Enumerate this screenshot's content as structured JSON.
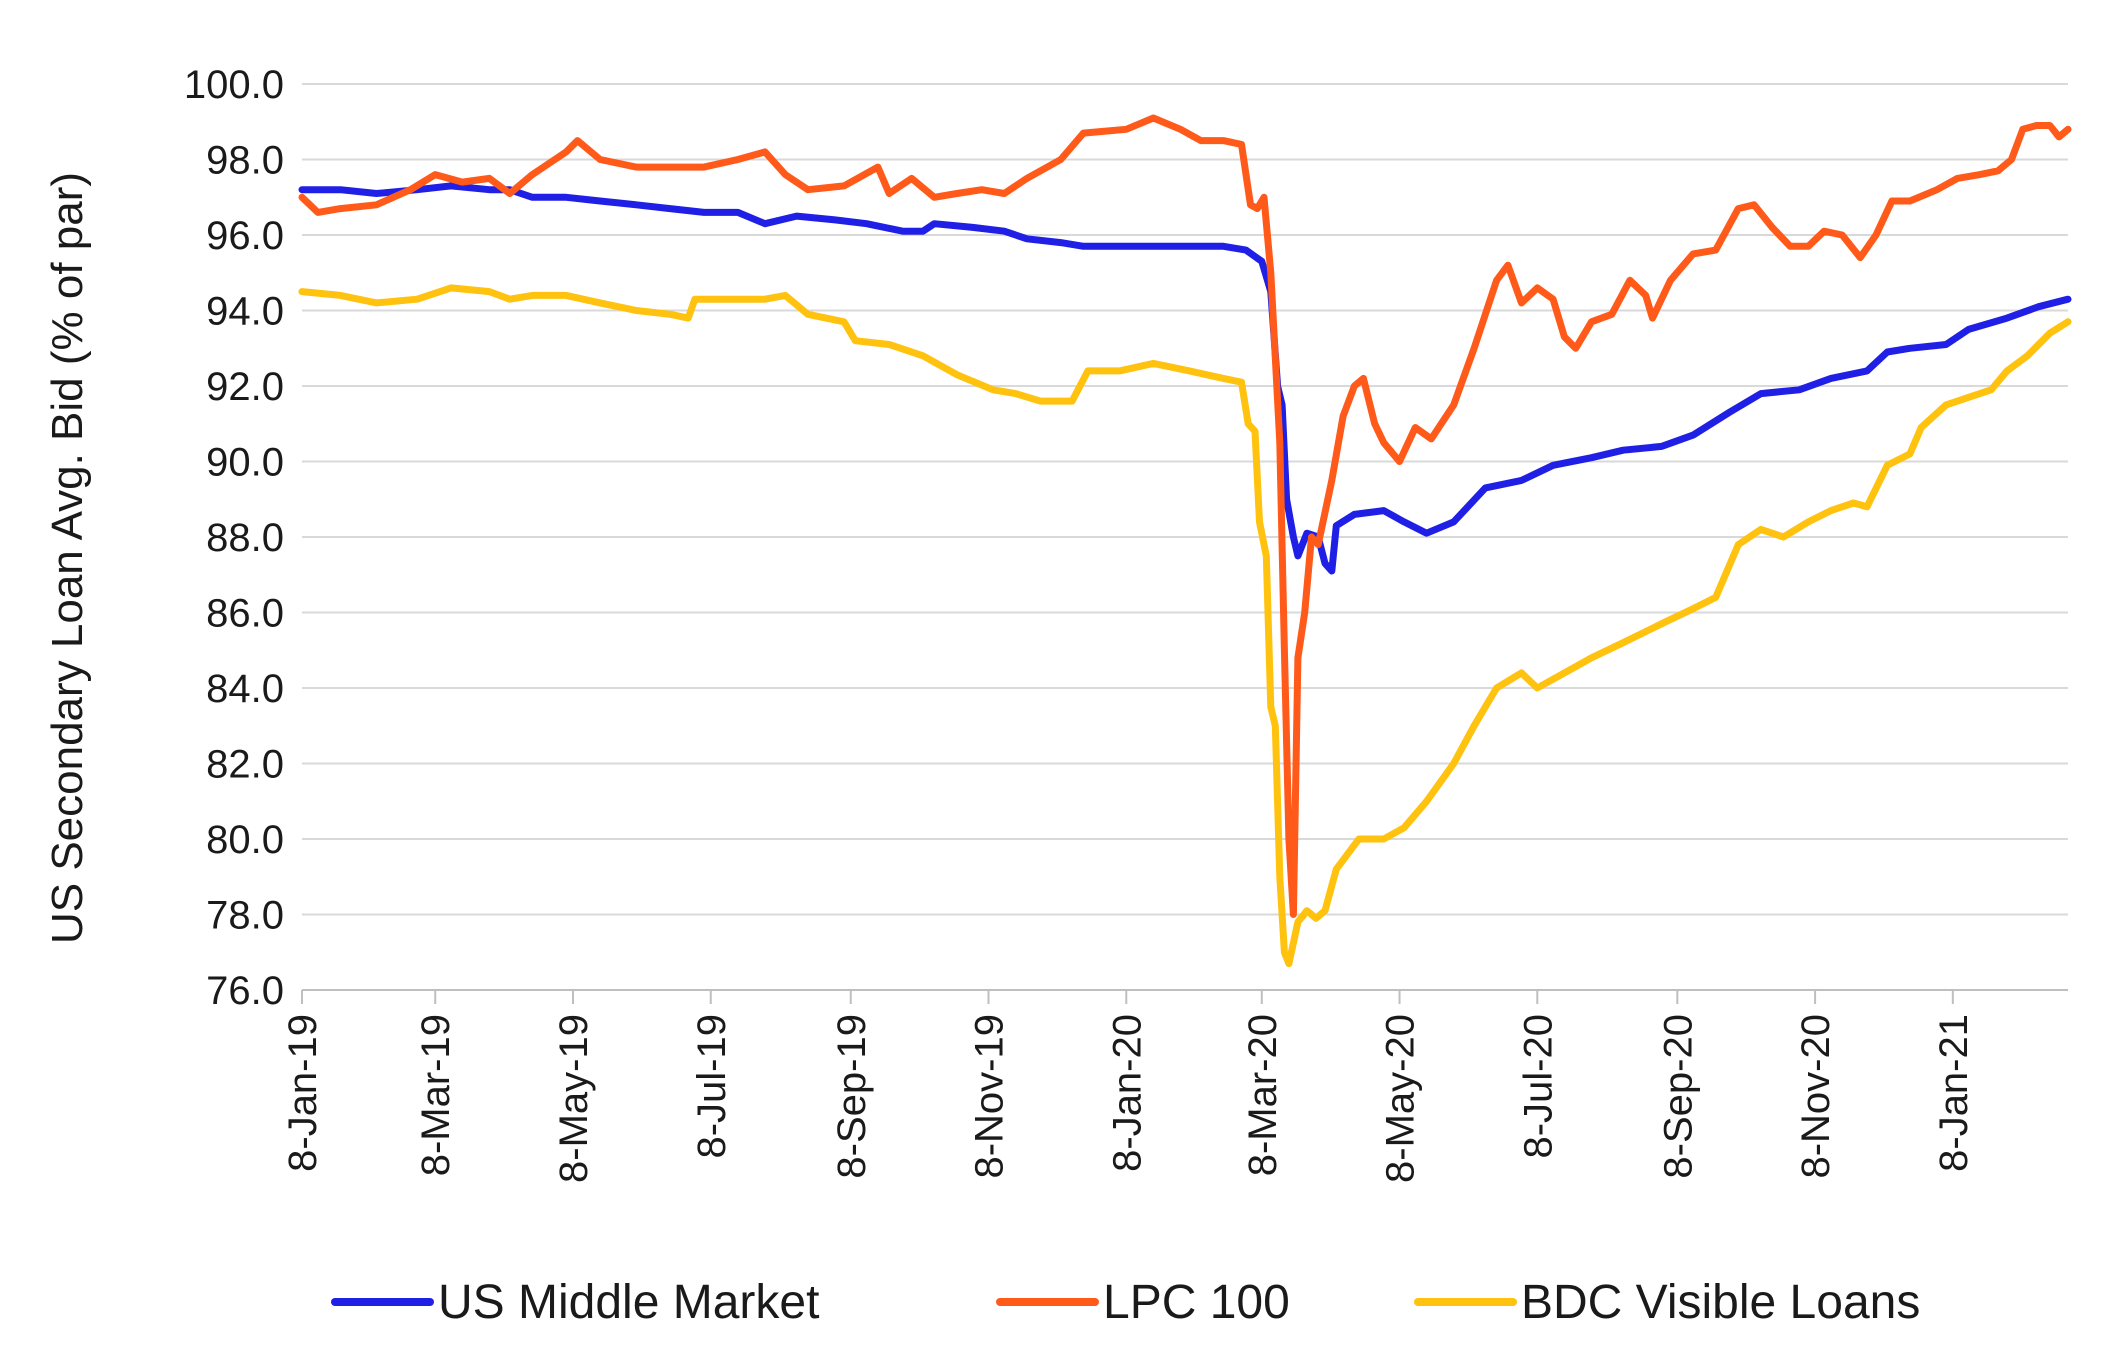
{
  "chart_data": {
    "type": "line",
    "title": "",
    "xlabel": "",
    "ylabel": "US Secondary Loan Avg. Bid (% of par)",
    "ylim": [
      76.0,
      100.0
    ],
    "y_ticks": [
      "76.0",
      "78.0",
      "80.0",
      "82.0",
      "84.0",
      "86.0",
      "88.0",
      "90.0",
      "92.0",
      "94.0",
      "96.0",
      "98.0",
      "100.0"
    ],
    "x_start": "2019-01-08",
    "x_end": "2021-02-28",
    "x_ticks": [
      {
        "date": "2019-01-08",
        "label": "8-Jan-19"
      },
      {
        "date": "2019-03-08",
        "label": "8-Mar-19"
      },
      {
        "date": "2019-05-08",
        "label": "8-May-19"
      },
      {
        "date": "2019-07-08",
        "label": "8-Jul-19"
      },
      {
        "date": "2019-09-08",
        "label": "8-Sep-19"
      },
      {
        "date": "2019-11-08",
        "label": "8-Nov-19"
      },
      {
        "date": "2020-01-08",
        "label": "8-Jan-20"
      },
      {
        "date": "2020-03-08",
        "label": "8-Mar-20"
      },
      {
        "date": "2020-05-08",
        "label": "8-May-20"
      },
      {
        "date": "2020-07-08",
        "label": "8-Jul-20"
      },
      {
        "date": "2020-09-08",
        "label": "8-Sep-20"
      },
      {
        "date": "2020-11-08",
        "label": "8-Nov-20"
      },
      {
        "date": "2021-01-08",
        "label": "8-Jan-21"
      }
    ],
    "grid": true,
    "legend_position": "bottom",
    "series": [
      {
        "name": "US Middle Market",
        "color": "#1f1fe6",
        "points": [
          [
            "2019-01-08",
            97.2
          ],
          [
            "2019-01-25",
            97.2
          ],
          [
            "2019-02-10",
            97.1
          ],
          [
            "2019-02-28",
            97.2
          ],
          [
            "2019-03-15",
            97.3
          ],
          [
            "2019-04-01",
            97.2
          ],
          [
            "2019-04-10",
            97.2
          ],
          [
            "2019-04-20",
            97.0
          ],
          [
            "2019-05-05",
            97.0
          ],
          [
            "2019-05-20",
            96.9
          ],
          [
            "2019-06-05",
            96.8
          ],
          [
            "2019-06-20",
            96.7
          ],
          [
            "2019-07-05",
            96.6
          ],
          [
            "2019-07-20",
            96.6
          ],
          [
            "2019-08-01",
            96.3
          ],
          [
            "2019-08-15",
            96.5
          ],
          [
            "2019-09-01",
            96.4
          ],
          [
            "2019-09-15",
            96.3
          ],
          [
            "2019-10-01",
            96.1
          ],
          [
            "2019-10-10",
            96.1
          ],
          [
            "2019-10-15",
            96.3
          ],
          [
            "2019-11-01",
            96.2
          ],
          [
            "2019-11-15",
            96.1
          ],
          [
            "2019-11-25",
            95.9
          ],
          [
            "2019-12-10",
            95.8
          ],
          [
            "2019-12-20",
            95.7
          ],
          [
            "2020-01-05",
            95.7
          ],
          [
            "2020-01-20",
            95.7
          ],
          [
            "2020-02-05",
            95.7
          ],
          [
            "2020-02-20",
            95.7
          ],
          [
            "2020-03-01",
            95.6
          ],
          [
            "2020-03-08",
            95.3
          ],
          [
            "2020-03-12",
            94.5
          ],
          [
            "2020-03-15",
            92.0
          ],
          [
            "2020-03-17",
            91.5
          ],
          [
            "2020-03-19",
            89.0
          ],
          [
            "2020-03-22",
            88.0
          ],
          [
            "2020-03-24",
            87.5
          ],
          [
            "2020-03-28",
            88.1
          ],
          [
            "2020-04-02",
            88.0
          ],
          [
            "2020-04-05",
            87.3
          ],
          [
            "2020-04-08",
            87.1
          ],
          [
            "2020-04-10",
            88.3
          ],
          [
            "2020-04-18",
            88.6
          ],
          [
            "2020-05-01",
            88.7
          ],
          [
            "2020-05-10",
            88.4
          ],
          [
            "2020-05-20",
            88.1
          ],
          [
            "2020-06-01",
            88.4
          ],
          [
            "2020-06-15",
            89.3
          ],
          [
            "2020-07-01",
            89.5
          ],
          [
            "2020-07-15",
            89.9
          ],
          [
            "2020-08-01",
            90.1
          ],
          [
            "2020-08-15",
            90.3
          ],
          [
            "2020-09-01",
            90.4
          ],
          [
            "2020-09-15",
            90.7
          ],
          [
            "2020-10-01",
            91.3
          ],
          [
            "2020-10-15",
            91.8
          ],
          [
            "2020-11-01",
            91.9
          ],
          [
            "2020-11-15",
            92.2
          ],
          [
            "2020-12-01",
            92.4
          ],
          [
            "2020-12-10",
            92.9
          ],
          [
            "2020-12-20",
            93.0
          ],
          [
            "2021-01-05",
            93.1
          ],
          [
            "2021-01-15",
            93.5
          ],
          [
            "2021-02-01",
            93.8
          ],
          [
            "2021-02-15",
            94.1
          ],
          [
            "2021-02-28",
            94.3
          ]
        ]
      },
      {
        "name": "LPC 100",
        "color": "#ff5a1a",
        "points": [
          [
            "2019-01-08",
            97.0
          ],
          [
            "2019-01-15",
            96.6
          ],
          [
            "2019-01-25",
            96.7
          ],
          [
            "2019-02-10",
            96.8
          ],
          [
            "2019-02-25",
            97.2
          ],
          [
            "2019-03-08",
            97.6
          ],
          [
            "2019-03-20",
            97.4
          ],
          [
            "2019-04-01",
            97.5
          ],
          [
            "2019-04-10",
            97.1
          ],
          [
            "2019-04-20",
            97.6
          ],
          [
            "2019-05-05",
            98.2
          ],
          [
            "2019-05-10",
            98.5
          ],
          [
            "2019-05-20",
            98.0
          ],
          [
            "2019-06-05",
            97.8
          ],
          [
            "2019-06-20",
            97.8
          ],
          [
            "2019-07-05",
            97.8
          ],
          [
            "2019-07-20",
            98.0
          ],
          [
            "2019-08-01",
            98.2
          ],
          [
            "2019-08-10",
            97.6
          ],
          [
            "2019-08-20",
            97.2
          ],
          [
            "2019-09-05",
            97.3
          ],
          [
            "2019-09-20",
            97.8
          ],
          [
            "2019-09-25",
            97.1
          ],
          [
            "2019-10-05",
            97.5
          ],
          [
            "2019-10-15",
            97.0
          ],
          [
            "2019-10-25",
            97.1
          ],
          [
            "2019-11-05",
            97.2
          ],
          [
            "2019-11-15",
            97.1
          ],
          [
            "2019-11-25",
            97.5
          ],
          [
            "2019-12-10",
            98.0
          ],
          [
            "2019-12-20",
            98.7
          ],
          [
            "2020-01-08",
            98.8
          ],
          [
            "2020-01-20",
            99.1
          ],
          [
            "2020-02-01",
            98.8
          ],
          [
            "2020-02-10",
            98.5
          ],
          [
            "2020-02-20",
            98.5
          ],
          [
            "2020-02-28",
            98.4
          ],
          [
            "2020-03-03",
            96.8
          ],
          [
            "2020-03-06",
            96.7
          ],
          [
            "2020-03-09",
            97.0
          ],
          [
            "2020-03-12",
            95.0
          ],
          [
            "2020-03-16",
            90.5
          ],
          [
            "2020-03-18",
            85.0
          ],
          [
            "2020-03-20",
            80.0
          ],
          [
            "2020-03-22",
            78.0
          ],
          [
            "2020-03-24",
            84.8
          ],
          [
            "2020-03-27",
            86.0
          ],
          [
            "2020-03-30",
            88.0
          ],
          [
            "2020-04-02",
            87.8
          ],
          [
            "2020-04-08",
            89.5
          ],
          [
            "2020-04-13",
            91.2
          ],
          [
            "2020-04-18",
            92.0
          ],
          [
            "2020-04-22",
            92.2
          ],
          [
            "2020-04-27",
            91.0
          ],
          [
            "2020-05-01",
            90.5
          ],
          [
            "2020-05-08",
            90.0
          ],
          [
            "2020-05-15",
            90.9
          ],
          [
            "2020-05-22",
            90.6
          ],
          [
            "2020-06-01",
            91.5
          ],
          [
            "2020-06-10",
            93.0
          ],
          [
            "2020-06-20",
            94.8
          ],
          [
            "2020-06-25",
            95.2
          ],
          [
            "2020-07-01",
            94.2
          ],
          [
            "2020-07-08",
            94.6
          ],
          [
            "2020-07-15",
            94.3
          ],
          [
            "2020-07-20",
            93.3
          ],
          [
            "2020-07-25",
            93.0
          ],
          [
            "2020-08-01",
            93.7
          ],
          [
            "2020-08-10",
            93.9
          ],
          [
            "2020-08-18",
            94.8
          ],
          [
            "2020-08-25",
            94.4
          ],
          [
            "2020-08-28",
            93.8
          ],
          [
            "2020-09-05",
            94.8
          ],
          [
            "2020-09-15",
            95.5
          ],
          [
            "2020-09-25",
            95.6
          ],
          [
            "2020-10-05",
            96.7
          ],
          [
            "2020-10-12",
            96.8
          ],
          [
            "2020-10-20",
            96.2
          ],
          [
            "2020-10-28",
            95.7
          ],
          [
            "2020-11-05",
            95.7
          ],
          [
            "2020-11-12",
            96.1
          ],
          [
            "2020-11-20",
            96.0
          ],
          [
            "2020-11-28",
            95.4
          ],
          [
            "2020-12-05",
            96.0
          ],
          [
            "2020-12-12",
            96.9
          ],
          [
            "2020-12-20",
            96.9
          ],
          [
            "2021-01-01",
            97.2
          ],
          [
            "2021-01-10",
            97.5
          ],
          [
            "2021-01-20",
            97.6
          ],
          [
            "2021-01-28",
            97.7
          ],
          [
            "2021-02-03",
            98.0
          ],
          [
            "2021-02-08",
            98.8
          ],
          [
            "2021-02-14",
            98.9
          ],
          [
            "2021-02-20",
            98.9
          ],
          [
            "2021-02-24",
            98.6
          ],
          [
            "2021-02-28",
            98.8
          ]
        ]
      },
      {
        "name": "BDC Visible Loans",
        "color": "#ffc20e",
        "points": [
          [
            "2019-01-08",
            94.5
          ],
          [
            "2019-01-25",
            94.4
          ],
          [
            "2019-02-10",
            94.2
          ],
          [
            "2019-02-28",
            94.3
          ],
          [
            "2019-03-15",
            94.6
          ],
          [
            "2019-04-01",
            94.5
          ],
          [
            "2019-04-10",
            94.3
          ],
          [
            "2019-04-20",
            94.4
          ],
          [
            "2019-05-05",
            94.4
          ],
          [
            "2019-05-20",
            94.2
          ],
          [
            "2019-06-05",
            94.0
          ],
          [
            "2019-06-20",
            93.9
          ],
          [
            "2019-06-28",
            93.8
          ],
          [
            "2019-07-01",
            94.3
          ],
          [
            "2019-07-20",
            94.3
          ],
          [
            "2019-08-01",
            94.3
          ],
          [
            "2019-08-10",
            94.4
          ],
          [
            "2019-08-20",
            93.9
          ],
          [
            "2019-09-05",
            93.7
          ],
          [
            "2019-09-10",
            93.2
          ],
          [
            "2019-09-25",
            93.1
          ],
          [
            "2019-10-10",
            92.8
          ],
          [
            "2019-10-25",
            92.3
          ],
          [
            "2019-11-10",
            91.9
          ],
          [
            "2019-11-20",
            91.8
          ],
          [
            "2019-12-01",
            91.6
          ],
          [
            "2019-12-15",
            91.6
          ],
          [
            "2019-12-22",
            92.4
          ],
          [
            "2020-01-05",
            92.4
          ],
          [
            "2020-01-20",
            92.6
          ],
          [
            "2020-02-05",
            92.4
          ],
          [
            "2020-02-20",
            92.2
          ],
          [
            "2020-02-28",
            92.1
          ],
          [
            "2020-03-02",
            91.0
          ],
          [
            "2020-03-05",
            90.8
          ],
          [
            "2020-03-07",
            88.4
          ],
          [
            "2020-03-10",
            87.5
          ],
          [
            "2020-03-12",
            83.5
          ],
          [
            "2020-03-14",
            83.0
          ],
          [
            "2020-03-16",
            79.0
          ],
          [
            "2020-03-18",
            77.0
          ],
          [
            "2020-03-20",
            76.7
          ],
          [
            "2020-03-24",
            77.8
          ],
          [
            "2020-03-28",
            78.1
          ],
          [
            "2020-04-01",
            77.9
          ],
          [
            "2020-04-05",
            78.1
          ],
          [
            "2020-04-10",
            79.2
          ],
          [
            "2020-04-20",
            80.0
          ],
          [
            "2020-05-01",
            80.0
          ],
          [
            "2020-05-10",
            80.3
          ],
          [
            "2020-05-20",
            81.0
          ],
          [
            "2020-06-01",
            82.0
          ],
          [
            "2020-06-10",
            83.0
          ],
          [
            "2020-06-20",
            84.0
          ],
          [
            "2020-07-01",
            84.4
          ],
          [
            "2020-07-08",
            84.0
          ],
          [
            "2020-07-20",
            84.4
          ],
          [
            "2020-08-01",
            84.8
          ],
          [
            "2020-08-15",
            85.2
          ],
          [
            "2020-09-01",
            85.7
          ],
          [
            "2020-09-15",
            86.1
          ],
          [
            "2020-09-25",
            86.4
          ],
          [
            "2020-10-05",
            87.8
          ],
          [
            "2020-10-15",
            88.2
          ],
          [
            "2020-10-25",
            88.0
          ],
          [
            "2020-11-05",
            88.4
          ],
          [
            "2020-11-15",
            88.7
          ],
          [
            "2020-11-25",
            88.9
          ],
          [
            "2020-12-01",
            88.8
          ],
          [
            "2020-12-10",
            89.9
          ],
          [
            "2020-12-20",
            90.2
          ],
          [
            "2020-12-25",
            90.9
          ],
          [
            "2021-01-05",
            91.5
          ],
          [
            "2021-01-15",
            91.7
          ],
          [
            "2021-01-25",
            91.9
          ],
          [
            "2021-02-01",
            92.4
          ],
          [
            "2021-02-10",
            92.8
          ],
          [
            "2021-02-20",
            93.4
          ],
          [
            "2021-02-28",
            93.7
          ]
        ]
      }
    ]
  }
}
